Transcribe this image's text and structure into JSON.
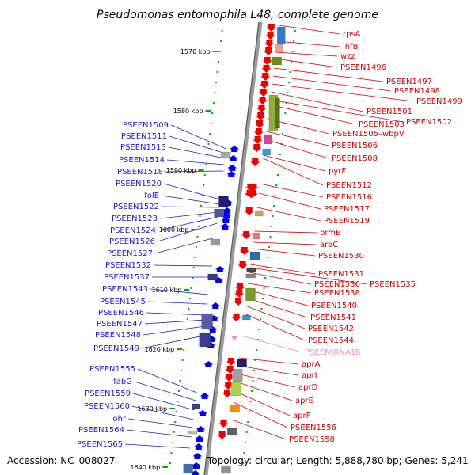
{
  "title": "Pseudomonas entomophila L48, complete genome",
  "footer": {
    "accession": "Accession: NC_008027",
    "topology": "Topology: circular; Length: 5,888,780 bp; Genes: 5,241"
  },
  "ticks": [
    "1570 kbp",
    "1580 kbp",
    "1590 kbp",
    "1600 kbp",
    "1610 kbp",
    "1620 kbp",
    "1630 kbp",
    "1640 kbp"
  ],
  "left_labels": [
    "PSEEN1509",
    "PSEEN1511",
    "PSEEN1513",
    "PSEEN1514",
    "PSEEN1518",
    "PSEEN1520",
    "folE",
    "PSEEN1522",
    "PSEEN1523",
    "PSEEN1524",
    "PSEEN1526",
    "PSEEN1527",
    "PSEEN1532",
    "PSEEN1537",
    "PSEEN1543",
    "PSEEN1545",
    "PSEEN1546",
    "PSEEN1547",
    "PSEEN1548",
    "PSEEN1549",
    "PSEEN1555",
    "fabG",
    "PSEEN1559",
    "PSEEN1560",
    "ohr",
    "PSEEN1564",
    "PSEEN1565"
  ],
  "right_labels": [
    "rpsA",
    "ihfB",
    "wzz",
    "PSEEN1496",
    "PSEEN1497",
    "PSEEN1498",
    "PSEEN1499",
    "PSEEN1501",
    "PSEEN1502",
    "PSEEN1503",
    "PSEEN1505–wbpV",
    "PSEEN1506",
    "PSEEN1508",
    "pyrF",
    "PSEEN1512",
    "PSEEN1516",
    "PSEEN1517",
    "PSEEN1519",
    "prmB",
    "aroC",
    "PSEEN1530",
    "PSEEN1531",
    "PSEEN1535",
    "PSEEN1536",
    "PSEEN1538",
    "PSEEN1540",
    "PSEEN1541",
    "PSEEN1542",
    "PSEEN1544",
    "PSEENtRNA18",
    "aprA",
    "aprI",
    "aprD",
    "aprE",
    "aprF",
    "PSEEN1556",
    "PSEEN1558"
  ],
  "colors": {
    "forward": "#ee0000",
    "reverse": "#0000ee",
    "trna": "#f08ac8",
    "backbone": "#808080",
    "tick": "#00aa00"
  }
}
